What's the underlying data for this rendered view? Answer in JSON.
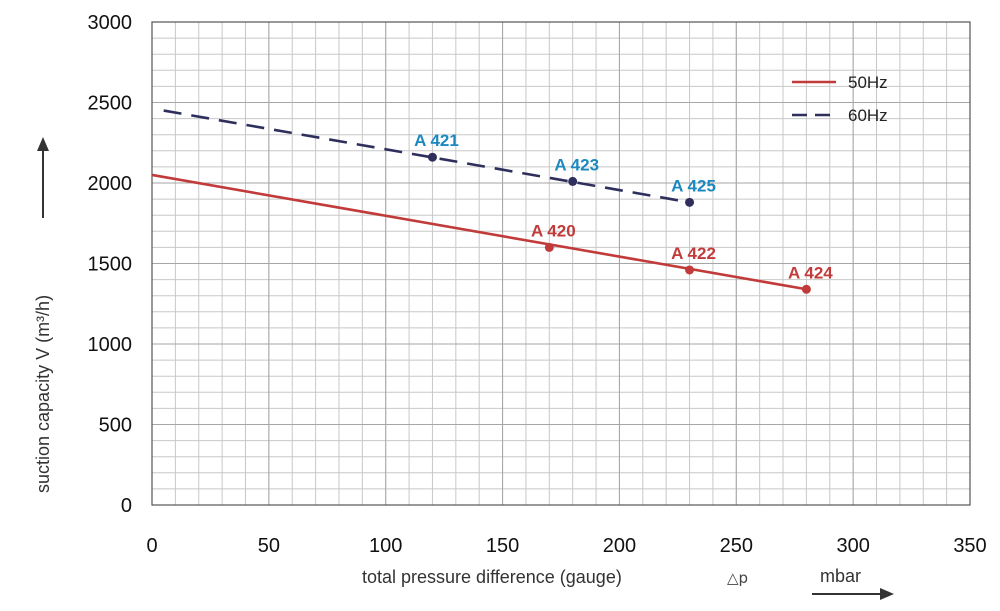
{
  "chart_data": {
    "type": "line",
    "xlabel": "total pressure difference (gauge)",
    "xlabel_symbol": "△p",
    "x_unit": "mbar",
    "ylabel": "suction capacity V (m³/h)",
    "xlim": [
      0,
      350
    ],
    "ylim": [
      0,
      3000
    ],
    "x_ticks": [
      0,
      50,
      100,
      150,
      200,
      250,
      300,
      350
    ],
    "y_ticks": [
      0,
      500,
      1000,
      1500,
      2000,
      2500,
      3000
    ],
    "grid": true,
    "legend_position": "top-right",
    "series": [
      {
        "name": "50Hz",
        "color": "#c23b3b",
        "label_color": "#c23b3b",
        "dash": false,
        "line": [
          [
            0,
            2050
          ],
          [
            280,
            1340
          ]
        ],
        "points": [
          {
            "label": "A 420",
            "x": 170,
            "y": 1600
          },
          {
            "label": "A 422",
            "x": 230,
            "y": 1460
          },
          {
            "label": "A 424",
            "x": 280,
            "y": 1340
          }
        ]
      },
      {
        "name": "60Hz",
        "color": "#2e2f5c",
        "label_color": "#1c88c0",
        "dash": true,
        "line": [
          [
            5,
            2450
          ],
          [
            230,
            1880
          ]
        ],
        "points": [
          {
            "label": "A 421",
            "x": 120,
            "y": 2160
          },
          {
            "label": "A 423",
            "x": 180,
            "y": 2010
          },
          {
            "label": "A 425",
            "x": 230,
            "y": 1880
          }
        ]
      }
    ]
  }
}
